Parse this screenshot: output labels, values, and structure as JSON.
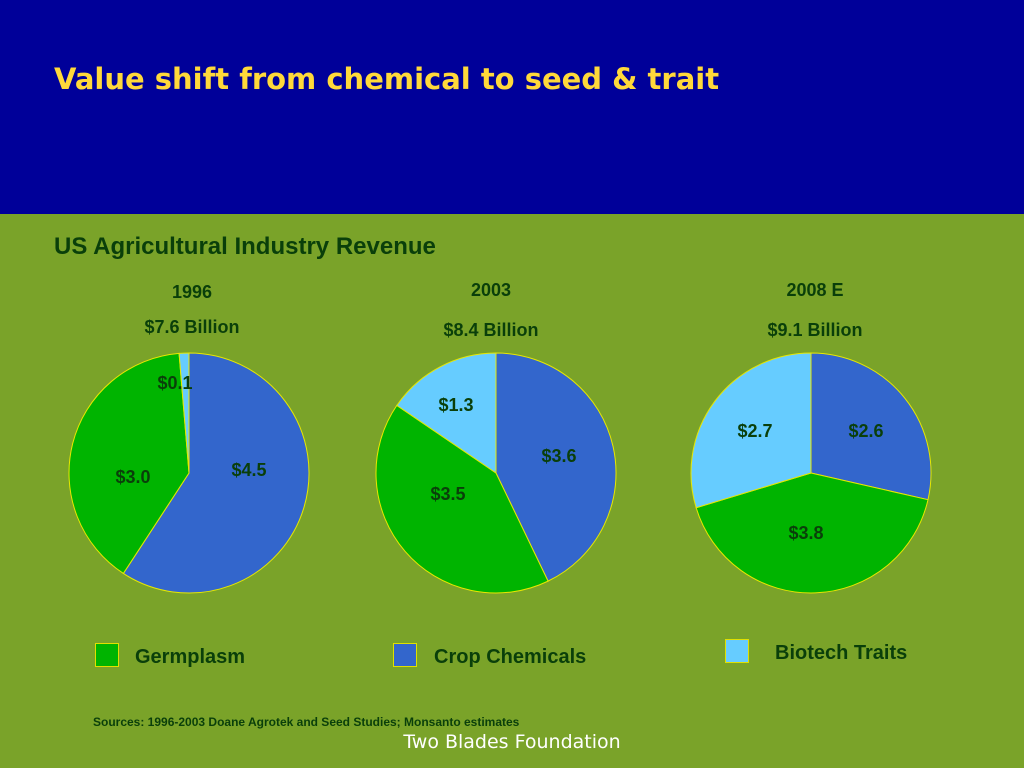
{
  "slide": {
    "title": "Value shift from chemical to seed & trait",
    "subtitle": "US Agricultural Industry Revenue",
    "sources": "Sources: 1996-2003 Doane Agrotek and Seed Studies; Monsanto estimates",
    "footer": "Two Blades Foundation"
  },
  "colors": {
    "header_bg": "#000099",
    "body_bg": "#7aa329",
    "title": "#ffd93a",
    "text": "#0a3f0a",
    "Germplasm": "#00b400",
    "Crop Chemicals": "#3366cc",
    "Biotech Traits": "#66ccff",
    "slice_border": "#e8e800"
  },
  "legend": [
    {
      "name": "Germplasm",
      "color": "#00b400"
    },
    {
      "name": "Crop Chemicals",
      "color": "#3366cc"
    },
    {
      "name": "Biotech Traits",
      "color": "#66ccff"
    }
  ],
  "chart_data": [
    {
      "type": "pie",
      "year": "1996",
      "total": "$7.6 Billion",
      "slices": [
        {
          "series": "Crop Chemicals",
          "value": 4.5,
          "label": "$4.5"
        },
        {
          "series": "Germplasm",
          "value": 3.0,
          "label": "$3.0"
        },
        {
          "series": "Biotech Traits",
          "value": 0.1,
          "label": "$0.1"
        }
      ]
    },
    {
      "type": "pie",
      "year": "2003",
      "total": "$8.4 Billion",
      "slices": [
        {
          "series": "Crop Chemicals",
          "value": 3.6,
          "label": "$3.6"
        },
        {
          "series": "Germplasm",
          "value": 3.5,
          "label": "$3.5"
        },
        {
          "series": "Biotech Traits",
          "value": 1.3,
          "label": "$1.3"
        }
      ]
    },
    {
      "type": "pie",
      "year": "2008 E",
      "total": "$9.1 Billion",
      "slices": [
        {
          "series": "Crop Chemicals",
          "value": 2.6,
          "label": "$2.6"
        },
        {
          "series": "Germplasm",
          "value": 3.8,
          "label": "$3.8"
        },
        {
          "series": "Biotech Traits",
          "value": 2.7,
          "label": "$2.7"
        }
      ]
    }
  ]
}
